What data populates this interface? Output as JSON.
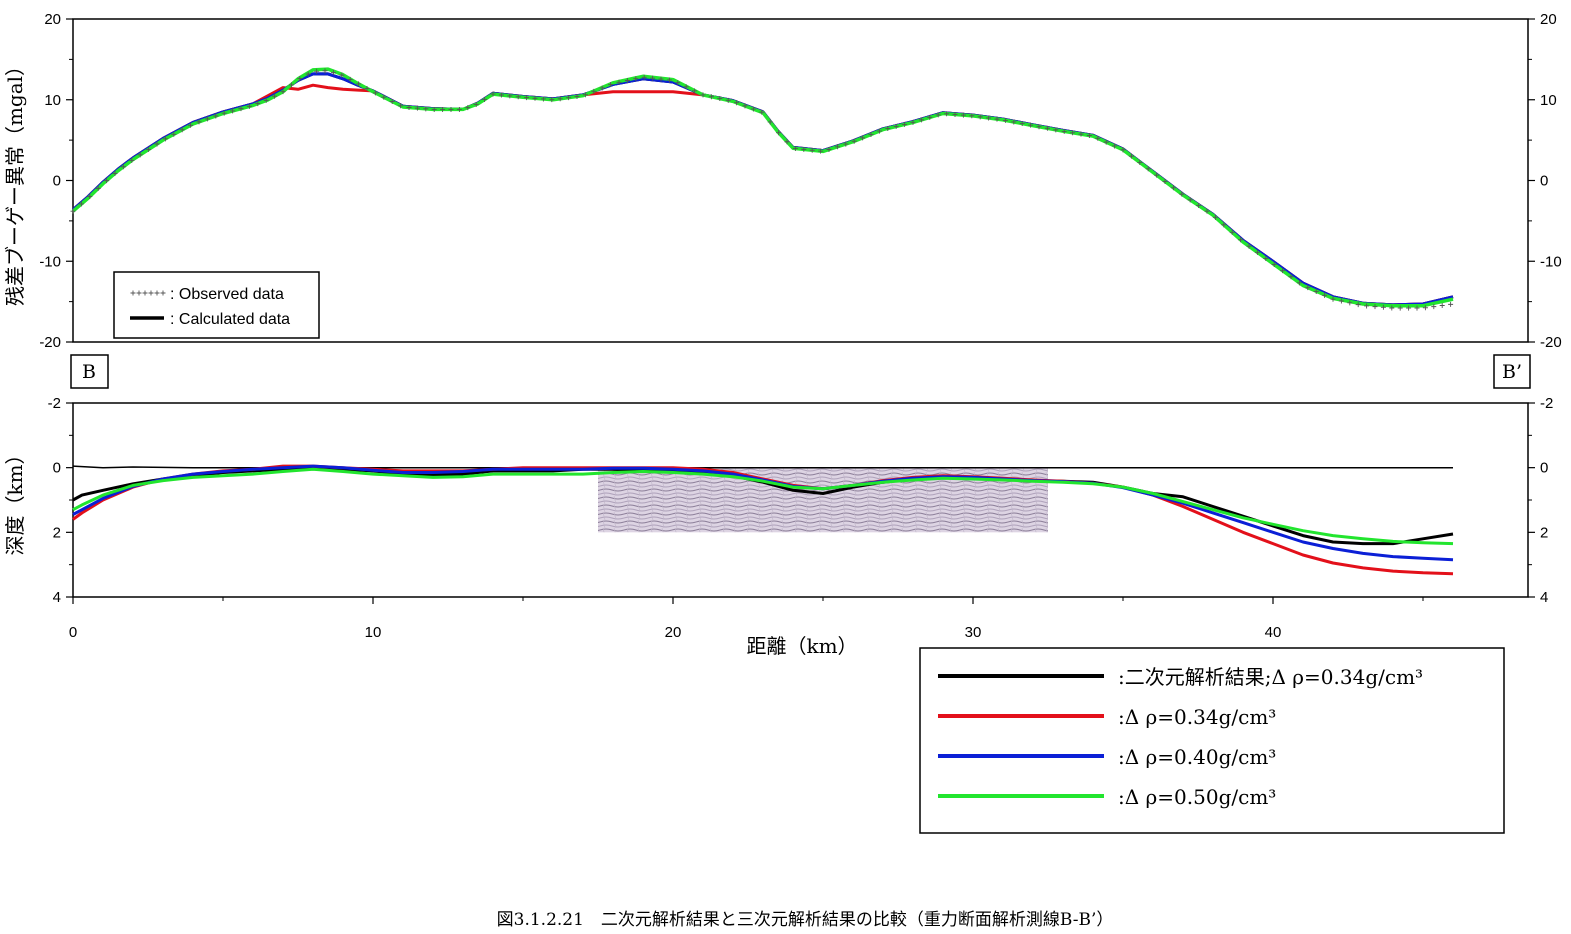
{
  "caption": "図3.1.2.21　二次元解析結果と三次元解析結果の比較（重力断面解析測線B-B’）",
  "section_markers": {
    "left": "B",
    "right": "B’"
  },
  "chart_data": [
    {
      "type": "line",
      "panel": "gravity-profile",
      "ylabel": "残差ブーゲー異常（mgal）",
      "xlim": [
        0,
        48.5
      ],
      "ylim": [
        -20,
        20
      ],
      "yticks": [
        20,
        10,
        0,
        -10,
        -20
      ],
      "grid": false,
      "legend": {
        "placement": "bottom-left",
        "entries": [
          {
            "marker": "cross",
            "label": ": Observed data"
          },
          {
            "marker": "line",
            "label": ": Calculated data"
          }
        ]
      },
      "series": [
        {
          "key": "observed",
          "color": "#777777",
          "x": [
            0,
            0.5,
            1,
            1.5,
            2,
            3,
            4,
            5,
            6,
            6.5,
            7,
            7.5,
            8,
            8.5,
            9,
            9.5,
            10,
            11,
            12,
            13,
            13.5,
            14,
            15,
            16,
            17,
            18,
            19,
            20,
            21,
            22,
            23,
            23.5,
            24,
            25,
            26,
            27,
            28,
            29,
            30,
            31,
            32,
            33,
            34,
            35,
            36,
            37,
            38,
            39,
            40,
            41,
            42,
            43,
            44,
            45,
            46
          ],
          "y": [
            -3.8,
            -2.2,
            -0.4,
            1.2,
            2.6,
            5,
            7,
            8.3,
            9.3,
            10,
            11,
            12.5,
            13.5,
            13.6,
            13,
            12,
            11,
            9.1,
            8.8,
            8.8,
            9.5,
            10.7,
            10.3,
            10,
            10.5,
            12,
            12.8,
            12.4,
            10.6,
            9.8,
            8.4,
            6,
            4,
            3.6,
            4.8,
            6.3,
            7.2,
            8.3,
            8,
            7.5,
            6.8,
            6.1,
            5.5,
            3.8,
            1,
            -1.8,
            -4.3,
            -7.6,
            -10.3,
            -13,
            -14.7,
            -15.5,
            -15.8,
            -15.8,
            -15.3
          ]
        },
        {
          "key": "calc-2d",
          "color": "#000000",
          "x": [
            0,
            0.5,
            1,
            1.5,
            2,
            3,
            4,
            5,
            6,
            6.5,
            7,
            7.5,
            8,
            8.5,
            9,
            9.5,
            10,
            11,
            12,
            13,
            13.5,
            14,
            15,
            16,
            17,
            18,
            19,
            20,
            21,
            22,
            23,
            23.5,
            24,
            25,
            26,
            27,
            28,
            29,
            30,
            31,
            32,
            33,
            34,
            35,
            36,
            37,
            38,
            39,
            40,
            41,
            42,
            43,
            44,
            45,
            46
          ],
          "y": [
            -3.6,
            -2,
            -0.2,
            1.4,
            2.8,
            5.2,
            7.2,
            8.5,
            9.5,
            10.2,
            11.2,
            12.4,
            13.2,
            13.2,
            12.6,
            11.8,
            11.1,
            9.2,
            8.9,
            8.8,
            9.6,
            10.8,
            10.4,
            10.1,
            10.6,
            11.9,
            12.6,
            12.2,
            10.6,
            9.9,
            8.5,
            6.1,
            4.1,
            3.7,
            4.9,
            6.4,
            7.3,
            8.4,
            8.1,
            7.6,
            6.9,
            6.2,
            5.6,
            3.9,
            1.1,
            -1.7,
            -4.2,
            -7.4,
            -10,
            -12.7,
            -14.4,
            -15.2,
            -15.4,
            -15.3,
            -14.4
          ]
        },
        {
          "key": "rho-034",
          "color": "#e3101a",
          "x": [
            0,
            0.5,
            1,
            1.5,
            2,
            3,
            4,
            5,
            6,
            6.5,
            7,
            7.5,
            8,
            8.5,
            9,
            9.5,
            10,
            11,
            12,
            13,
            13.5,
            14,
            15,
            16,
            17,
            18,
            19,
            20,
            21,
            22,
            23,
            23.5,
            24,
            25,
            26,
            27,
            28,
            29,
            30,
            31,
            32,
            33,
            34,
            35,
            36,
            37,
            38,
            39,
            40,
            41,
            42,
            43,
            44,
            45,
            46
          ],
          "y": [
            -3.6,
            -2,
            -0.2,
            1.4,
            2.8,
            5.2,
            7.2,
            8.5,
            9.5,
            10.5,
            11.5,
            11.3,
            11.8,
            11.5,
            11.3,
            11.2,
            11.1,
            9.2,
            8.9,
            8.8,
            9.6,
            10.8,
            10.4,
            10.1,
            10.6,
            11,
            11,
            11,
            10.6,
            9.9,
            8.5,
            6.1,
            4.1,
            3.7,
            4.9,
            6.4,
            7.3,
            8.4,
            8.1,
            7.6,
            6.9,
            6.2,
            5.6,
            3.9,
            1.1,
            -1.7,
            -4.2,
            -7.4,
            -10,
            -12.7,
            -14.4,
            -15.2,
            -15.4,
            -15.3,
            -14.4
          ]
        },
        {
          "key": "rho-040",
          "color": "#0b1fd6",
          "x": [
            0,
            0.5,
            1,
            1.5,
            2,
            3,
            4,
            5,
            6,
            6.5,
            7,
            7.5,
            8,
            8.5,
            9,
            9.5,
            10,
            11,
            12,
            13,
            13.5,
            14,
            15,
            16,
            17,
            18,
            19,
            20,
            21,
            22,
            23,
            23.5,
            24,
            25,
            26,
            27,
            28,
            29,
            30,
            31,
            32,
            33,
            34,
            35,
            36,
            37,
            38,
            39,
            40,
            41,
            42,
            43,
            44,
            45,
            46
          ],
          "y": [
            -3.6,
            -2,
            -0.2,
            1.4,
            2.8,
            5.2,
            7.2,
            8.5,
            9.5,
            10.2,
            11.2,
            12.4,
            13.2,
            13.2,
            12.6,
            11.8,
            11.1,
            9.2,
            8.9,
            8.8,
            9.6,
            10.8,
            10.4,
            10.1,
            10.6,
            11.9,
            12.6,
            12.2,
            10.6,
            9.9,
            8.5,
            6.1,
            4.1,
            3.7,
            4.9,
            6.4,
            7.3,
            8.4,
            8.1,
            7.6,
            6.9,
            6.2,
            5.6,
            3.9,
            1.1,
            -1.7,
            -4.2,
            -7.4,
            -10,
            -12.7,
            -14.4,
            -15.2,
            -15.4,
            -15.3,
            -14.4
          ]
        },
        {
          "key": "rho-050",
          "color": "#22e52e",
          "x": [
            0,
            0.5,
            1,
            1.5,
            2,
            3,
            4,
            5,
            6,
            6.5,
            7,
            7.5,
            8,
            8.5,
            9,
            9.5,
            10,
            11,
            12,
            13,
            13.5,
            14,
            15,
            16,
            17,
            18,
            19,
            20,
            21,
            22,
            23,
            23.5,
            24,
            25,
            26,
            27,
            28,
            29,
            30,
            31,
            32,
            33,
            34,
            35,
            36,
            37,
            38,
            39,
            40,
            41,
            42,
            43,
            44,
            45,
            46
          ],
          "y": [
            -3.8,
            -2.2,
            -0.4,
            1.2,
            2.6,
            5,
            7,
            8.3,
            9.3,
            10,
            11,
            12.6,
            13.7,
            13.8,
            13.1,
            12,
            11,
            9.1,
            8.8,
            8.8,
            9.5,
            10.7,
            10.3,
            10,
            10.5,
            12.1,
            12.9,
            12.5,
            10.6,
            9.8,
            8.4,
            6,
            4,
            3.6,
            4.8,
            6.3,
            7.2,
            8.3,
            8,
            7.5,
            6.8,
            6.1,
            5.5,
            3.8,
            1,
            -1.8,
            -4.3,
            -7.6,
            -10.3,
            -13,
            -14.6,
            -15.3,
            -15.5,
            -15.5,
            -14.7
          ]
        }
      ]
    },
    {
      "type": "line",
      "panel": "depth-profile",
      "xlabel": "距離（km）",
      "ylabel": "深度（km）",
      "xlim": [
        0,
        48.5
      ],
      "xticks": [
        0,
        10,
        20,
        30,
        40
      ],
      "ylim": [
        -2,
        4
      ],
      "yticks": [
        -2,
        0,
        2,
        4
      ],
      "grid": false,
      "y_inverted": true,
      "seismic_section": {
        "x_range": [
          17.5,
          32.5
        ],
        "depth_range": [
          0,
          2
        ]
      },
      "legend": {
        "placement": "bottom-right",
        "entries": [
          {
            "series": "calc-2d",
            "label": ":二次元解析結果;Δ ρ=0.34g/cm³"
          },
          {
            "series": "rho-034",
            "label": ":Δ ρ=0.34g/cm³"
          },
          {
            "series": "rho-040",
            "label": ":Δ ρ=0.40g/cm³"
          },
          {
            "series": "rho-050",
            "label": ":Δ ρ=0.50g/cm³"
          }
        ]
      },
      "series": [
        {
          "key": "surface",
          "color": "#000000",
          "width": 1.5,
          "x": [
            0,
            1,
            2,
            4,
            6,
            8,
            10,
            12,
            14,
            16,
            18,
            20,
            22,
            24,
            26,
            28,
            30,
            32,
            34,
            36,
            38,
            40,
            42,
            44,
            46
          ],
          "y": [
            -0.05,
            0,
            -0.02,
            0,
            0,
            0,
            0,
            0,
            0,
            0,
            0,
            0,
            0,
            0,
            0,
            0,
            0,
            0,
            0,
            0,
            0,
            0,
            0,
            0,
            0
          ]
        },
        {
          "key": "calc-2d",
          "color": "#000000",
          "width": 3,
          "x": [
            0,
            0.3,
            1,
            2,
            3,
            4,
            5,
            6,
            7,
            8,
            9,
            10,
            11,
            12,
            13,
            14,
            15,
            16,
            17,
            18,
            19,
            20,
            21,
            22,
            23,
            24,
            25,
            26,
            27,
            28,
            29,
            30,
            31,
            32,
            33,
            34,
            35,
            36,
            37,
            38,
            39,
            40,
            41,
            42,
            43,
            44,
            45,
            46
          ],
          "y": [
            1.0,
            0.85,
            0.7,
            0.5,
            0.35,
            0.25,
            0.15,
            0.1,
            0.05,
            0.02,
            0.05,
            0.1,
            0.2,
            0.22,
            0.2,
            0.1,
            0.1,
            0.1,
            0.05,
            0.05,
            0.1,
            0.1,
            0.15,
            0.25,
            0.45,
            0.7,
            0.8,
            0.6,
            0.45,
            0.35,
            0.3,
            0.3,
            0.35,
            0.4,
            0.42,
            0.45,
            0.6,
            0.8,
            0.9,
            1.2,
            1.5,
            1.8,
            2.1,
            2.3,
            2.35,
            2.35,
            2.2,
            2.05
          ]
        },
        {
          "key": "rho-034",
          "color": "#e3101a",
          "width": 3,
          "x": [
            0,
            0.3,
            1,
            2,
            3,
            4,
            5,
            6,
            7,
            8,
            9,
            10,
            11,
            12,
            13,
            14,
            15,
            16,
            17,
            18,
            19,
            20,
            21,
            22,
            23,
            24,
            25,
            26,
            27,
            28,
            29,
            30,
            31,
            32,
            33,
            34,
            35,
            36,
            37,
            38,
            39,
            40,
            41,
            42,
            43,
            44,
            45,
            46
          ],
          "y": [
            1.6,
            1.4,
            1.0,
            0.6,
            0.35,
            0.2,
            0.1,
            0.05,
            -0.05,
            -0.05,
            0,
            0.05,
            0.1,
            0.1,
            0.1,
            0.05,
            0,
            0,
            0,
            0,
            0,
            0,
            0.05,
            0.15,
            0.35,
            0.55,
            0.65,
            0.55,
            0.4,
            0.3,
            0.25,
            0.28,
            0.33,
            0.38,
            0.42,
            0.48,
            0.6,
            0.85,
            1.2,
            1.6,
            2.0,
            2.35,
            2.7,
            2.95,
            3.1,
            3.2,
            3.25,
            3.28
          ]
        },
        {
          "key": "rho-040",
          "color": "#0b1fd6",
          "width": 3,
          "x": [
            0,
            0.3,
            1,
            2,
            3,
            4,
            5,
            6,
            7,
            8,
            9,
            10,
            11,
            12,
            13,
            14,
            15,
            16,
            17,
            18,
            19,
            20,
            21,
            22,
            23,
            24,
            25,
            26,
            27,
            28,
            29,
            30,
            31,
            32,
            33,
            34,
            35,
            36,
            37,
            38,
            39,
            40,
            41,
            42,
            43,
            44,
            45,
            46
          ],
          "y": [
            1.45,
            1.3,
            0.95,
            0.58,
            0.35,
            0.2,
            0.12,
            0.05,
            0,
            -0.05,
            0,
            0.08,
            0.15,
            0.15,
            0.12,
            0.05,
            0.05,
            0.05,
            0.05,
            0.02,
            0.02,
            0.05,
            0.1,
            0.2,
            0.38,
            0.58,
            0.65,
            0.55,
            0.42,
            0.33,
            0.28,
            0.3,
            0.35,
            0.4,
            0.43,
            0.48,
            0.62,
            0.85,
            1.1,
            1.4,
            1.7,
            2.0,
            2.3,
            2.5,
            2.65,
            2.75,
            2.8,
            2.85
          ]
        },
        {
          "key": "rho-050",
          "color": "#22e52e",
          "width": 3,
          "x": [
            0,
            0.3,
            1,
            2,
            3,
            4,
            5,
            6,
            7,
            8,
            9,
            10,
            11,
            12,
            13,
            14,
            15,
            16,
            17,
            18,
            19,
            20,
            21,
            22,
            23,
            24,
            25,
            26,
            27,
            28,
            29,
            30,
            31,
            32,
            33,
            34,
            35,
            36,
            37,
            38,
            39,
            40,
            41,
            42,
            43,
            44,
            45,
            46
          ],
          "y": [
            1.3,
            1.15,
            0.85,
            0.55,
            0.4,
            0.3,
            0.25,
            0.2,
            0.12,
            0.05,
            0.12,
            0.2,
            0.25,
            0.3,
            0.28,
            0.2,
            0.2,
            0.2,
            0.2,
            0.15,
            0.12,
            0.15,
            0.2,
            0.28,
            0.42,
            0.6,
            0.65,
            0.55,
            0.45,
            0.38,
            0.33,
            0.35,
            0.38,
            0.42,
            0.45,
            0.5,
            0.6,
            0.8,
            1.05,
            1.3,
            1.55,
            1.75,
            1.95,
            2.1,
            2.2,
            2.28,
            2.32,
            2.35
          ]
        }
      ]
    }
  ]
}
